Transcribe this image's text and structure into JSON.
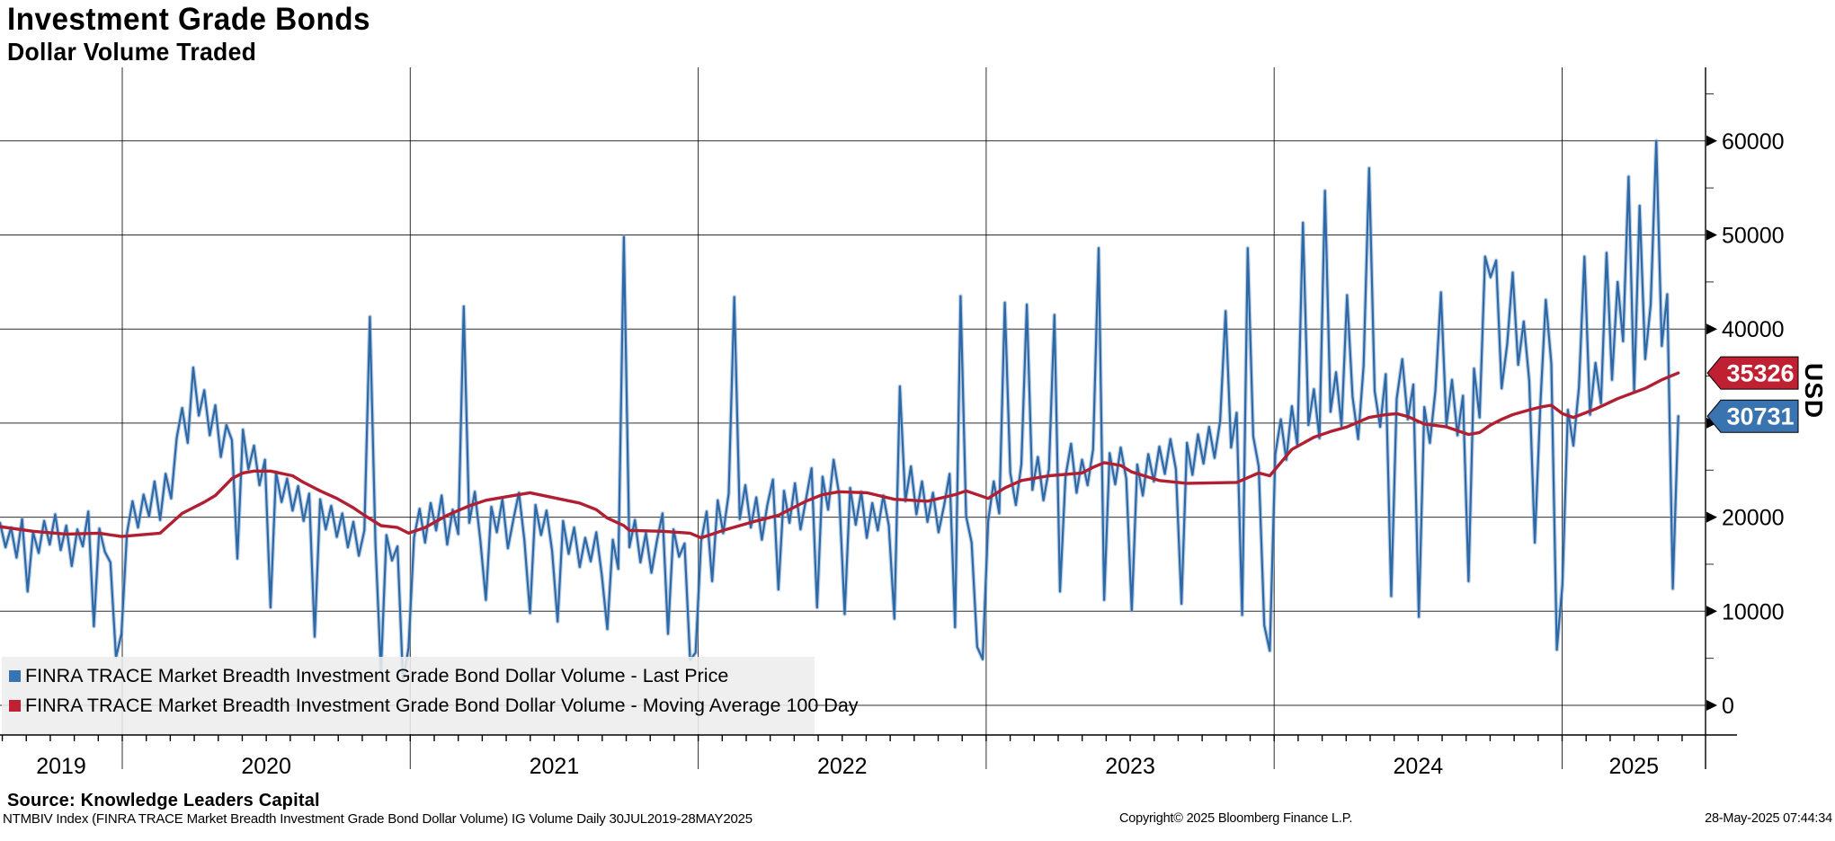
{
  "header": {
    "title": "Investment Grade Bonds",
    "subtitle": "Dollar Volume Traded"
  },
  "chart_data": {
    "type": "line",
    "title": "Investment Grade Bonds - Dollar Volume Traded",
    "x_axis": {
      "start_date": "2019-07-30",
      "end_date": "2025-05-28",
      "step_days": 7,
      "year_labels": [
        "2019",
        "2020",
        "2021",
        "2022",
        "2023",
        "2024",
        "2025"
      ],
      "gridline_years": [
        2020,
        2021,
        2022,
        2023,
        2024,
        2025
      ]
    },
    "y_axis": {
      "label": "USD",
      "min": 0,
      "max": 60000,
      "major_step": 10000,
      "minor_step": 5000
    },
    "legend_position": "bottom-left",
    "grid": true,
    "series": [
      {
        "name": "FINRA TRACE Market Breadth Investment Grade Bond Dollar Volume - Last Price",
        "color": "#2e69a7",
        "last_value": 30731,
        "values": [
          19400,
          16800,
          18900,
          15700,
          19800,
          12100,
          18400,
          16200,
          19600,
          17100,
          20300,
          16500,
          19100,
          14800,
          18700,
          16900,
          20600,
          8400,
          18800,
          16300,
          15200,
          5100,
          7600,
          18300,
          21700,
          18900,
          22400,
          20100,
          23800,
          19700,
          24600,
          22000,
          28400,
          31600,
          27900,
          35900,
          30800,
          33500,
          28700,
          31900,
          26400,
          29800,
          28200,
          15600,
          29300,
          25100,
          27600,
          23400,
          26100,
          10400,
          24800,
          21600,
          24100,
          20700,
          23300,
          19600,
          22500,
          7300,
          21900,
          18700,
          21200,
          17900,
          20400,
          16800,
          19500,
          15900,
          18600,
          41300,
          17200,
          3600,
          18100,
          15400,
          16900,
          2500,
          6100,
          17800,
          20900,
          17300,
          21500,
          18600,
          22300,
          17100,
          20800,
          18200,
          42400,
          19400,
          22700,
          17600,
          11200,
          21100,
          18400,
          21900,
          16700,
          19800,
          22600,
          17500,
          9800,
          21300,
          18100,
          20700,
          16400,
          8900,
          19600,
          16100,
          18900,
          14700,
          17800,
          15300,
          18400,
          13900,
          8100,
          17600,
          14500,
          49800,
          16800,
          19700,
          15200,
          18300,
          14100,
          17500,
          20400,
          7600,
          18700,
          15800,
          17200,
          4800,
          5600,
          17400,
          20600,
          13200,
          21800,
          18300,
          22500,
          43400,
          19800,
          23400,
          18900,
          22100,
          17600,
          21300,
          24000,
          12300,
          22800,
          19400,
          23600,
          18700,
          21900,
          25200,
          10400,
          24300,
          20800,
          26100,
          22400,
          9700,
          23100,
          19200,
          22700,
          17800,
          21500,
          18600,
          22300,
          19100,
          9200,
          33900,
          21700,
          25400,
          20300,
          23800,
          19500,
          22600,
          18400,
          21200,
          24600,
          8300,
          43500,
          20100,
          17300,
          6200,
          4900,
          19600,
          23800,
          20400,
          42800,
          24700,
          21300,
          25600,
          42600,
          22900,
          26400,
          21800,
          25100,
          41500,
          12100,
          24300,
          27800,
          22600,
          26100,
          23400,
          27200,
          48600,
          11200,
          26800,
          23500,
          27400,
          24100,
          10100,
          25600,
          22300,
          26700,
          23800,
          27500,
          24600,
          28300,
          25100,
          10800,
          27900,
          24500,
          28800,
          25700,
          29600,
          26300,
          30200,
          41900,
          27400,
          31100,
          9600,
          48600,
          28600,
          25400,
          8500,
          5800,
          26700,
          30400,
          26100,
          31800,
          27600,
          51300,
          29800,
          33600,
          28400,
          54700,
          31200,
          35400,
          29700,
          43600,
          32800,
          28300,
          36100,
          57100,
          33400,
          29600,
          35200,
          11600,
          32600,
          36800,
          30400,
          34100,
          9400,
          31700,
          27900,
          33400,
          43900,
          29800,
          34600,
          28700,
          32900,
          13200,
          35800,
          30600,
          47700,
          45500,
          47300,
          33700,
          38400,
          46000,
          36200,
          40800,
          34500,
          17300,
          31800,
          43100,
          36300,
          5900,
          12800,
          31400,
          27600,
          33800,
          47700,
          30900,
          36400,
          32100,
          48100,
          34600,
          45000,
          38700,
          56200,
          33400,
          53100,
          36800,
          42600,
          60000,
          38200,
          43700,
          12400,
          30731
        ]
      },
      {
        "name": "FINRA TRACE Market Breadth Investment Grade Bond Dollar Volume - Moving Average 100 Day",
        "color": "#b11f33",
        "last_value": 35326,
        "anchors": [
          [
            0,
            19000
          ],
          [
            6,
            18500
          ],
          [
            12,
            18200
          ],
          [
            18,
            18300
          ],
          [
            22,
            17950
          ],
          [
            29,
            18300
          ],
          [
            33,
            20400
          ],
          [
            37,
            21600
          ],
          [
            39,
            22300
          ],
          [
            42,
            24100
          ],
          [
            44,
            24700
          ],
          [
            46,
            24900
          ],
          [
            49,
            24900
          ],
          [
            53,
            24400
          ],
          [
            55,
            23700
          ],
          [
            58,
            22800
          ],
          [
            61,
            22000
          ],
          [
            64,
            21000
          ],
          [
            66,
            20200
          ],
          [
            69,
            19100
          ],
          [
            72,
            18900
          ],
          [
            73,
            18600
          ],
          [
            74,
            18300
          ],
          [
            77,
            18900
          ],
          [
            81,
            20200
          ],
          [
            85,
            21200
          ],
          [
            88,
            21800
          ],
          [
            92,
            22200
          ],
          [
            96,
            22600
          ],
          [
            100,
            22100
          ],
          [
            105,
            21500
          ],
          [
            108,
            20800
          ],
          [
            110,
            19900
          ],
          [
            113,
            19100
          ],
          [
            114,
            18600
          ],
          [
            120,
            18500
          ],
          [
            125,
            18300
          ],
          [
            127,
            17800
          ],
          [
            131,
            18600
          ],
          [
            134,
            19100
          ],
          [
            137,
            19600
          ],
          [
            141,
            20200
          ],
          [
            146,
            21700
          ],
          [
            149,
            22400
          ],
          [
            152,
            22700
          ],
          [
            157,
            22600
          ],
          [
            162,
            21900
          ],
          [
            168,
            21700
          ],
          [
            173,
            22400
          ],
          [
            175,
            22800
          ],
          [
            179,
            22000
          ],
          [
            182,
            23100
          ],
          [
            185,
            23900
          ],
          [
            190,
            24400
          ],
          [
            196,
            24700
          ],
          [
            198,
            25300
          ],
          [
            200,
            25800
          ],
          [
            203,
            25500
          ],
          [
            205,
            24800
          ],
          [
            210,
            23900
          ],
          [
            215,
            23600
          ],
          [
            224,
            23700
          ],
          [
            228,
            24700
          ],
          [
            230,
            24400
          ],
          [
            234,
            27200
          ],
          [
            238,
            28500
          ],
          [
            241,
            29100
          ],
          [
            244,
            29600
          ],
          [
            248,
            30600
          ],
          [
            251,
            30900
          ],
          [
            253,
            31000
          ],
          [
            255,
            30700
          ],
          [
            258,
            29900
          ],
          [
            262,
            29600
          ],
          [
            266,
            28800
          ],
          [
            268,
            29000
          ],
          [
            270,
            29800
          ],
          [
            272,
            30400
          ],
          [
            274,
            30900
          ],
          [
            277,
            31400
          ],
          [
            279,
            31700
          ],
          [
            281,
            31900
          ],
          [
            283,
            31000
          ],
          [
            285,
            30600
          ],
          [
            289,
            31500
          ],
          [
            293,
            32600
          ],
          [
            298,
            33700
          ],
          [
            301,
            34600
          ],
          [
            304,
            35326
          ]
        ]
      }
    ],
    "badges": [
      {
        "value": 35326,
        "color": "#bf2132"
      },
      {
        "value": 30731,
        "color": "#3a74b0"
      }
    ]
  },
  "legend": {
    "items": [
      {
        "label": "FINRA TRACE Market Breadth Investment Grade Bond Dollar Volume - Last Price",
        "color": "#3a74b0"
      },
      {
        "label": "FINRA TRACE Market Breadth Investment Grade Bond Dollar Volume - Moving Average 100 Day",
        "color": "#bf2132"
      }
    ]
  },
  "footer": {
    "source": "Source: Knowledge Leaders Capital",
    "description": "NTMBIV Index (FINRA TRACE Market Breadth Investment Grade Bond Dollar Volume) IG Volume  Daily 30JUL2019-28MAY2025",
    "copyright": "Copyright© 2025 Bloomberg Finance L.P.",
    "timestamp": "28-May-2025 07:44:34"
  }
}
